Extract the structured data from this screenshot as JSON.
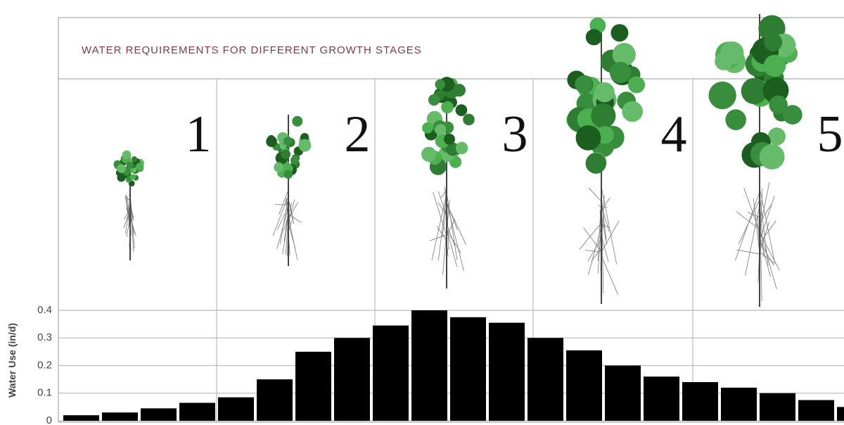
{
  "chart_data": {
    "type": "bar",
    "title": "WATER REQUIREMENTS FOR DIFFERENT GROWTH STAGES",
    "y_label": "Water Use (in/d)",
    "stages": [
      "1",
      "2",
      "3",
      "4",
      "5"
    ],
    "categories": [
      null,
      null,
      null,
      null,
      null,
      null,
      null,
      null,
      null,
      null,
      null,
      null,
      null,
      null,
      null,
      null,
      null,
      null,
      null,
      null,
      null
    ],
    "values": [
      0.02,
      0.03,
      0.045,
      0.065,
      0.085,
      0.15,
      0.25,
      0.3,
      0.345,
      0.4,
      0.375,
      0.355,
      0.3,
      0.255,
      0.2,
      0.16,
      0.14,
      0.12,
      0.1,
      0.075,
      0.05
    ],
    "color": "#000000",
    "ylim": [
      0,
      0.4
    ],
    "yticks": [
      0,
      0.1,
      0.2,
      0.3,
      0.4
    ],
    "grid": true
  }
}
